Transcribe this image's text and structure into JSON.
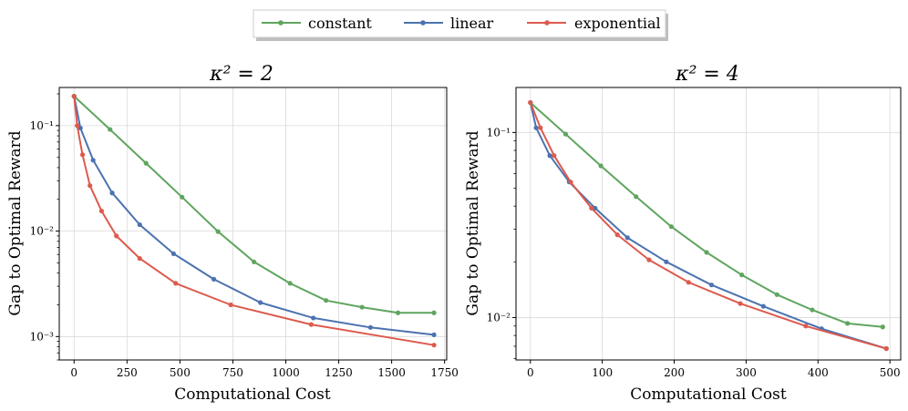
{
  "legend": {
    "entries": [
      {
        "name": "constant",
        "color": "#5fa55f"
      },
      {
        "name": "linear",
        "color": "#4c72b0"
      },
      {
        "name": "exponential",
        "color": "#dd5a4e"
      }
    ],
    "placement": "top-center"
  },
  "chart_data": [
    {
      "type": "line",
      "title": "κ² = 2",
      "xlabel": "Computational Cost",
      "ylabel": "Gap to Optimal Reward",
      "xscale": "linear",
      "yscale": "log",
      "xlim": [
        -70,
        1760
      ],
      "ylim": [
        0.0006,
        0.23
      ],
      "xticks": [
        0,
        250,
        500,
        750,
        1000,
        1250,
        1500,
        1750
      ],
      "xtick_labels": [
        "0",
        "250",
        "500",
        "750",
        "1000",
        "1250",
        "1500",
        "1750"
      ],
      "yticks": [
        0.001,
        0.01,
        0.1
      ],
      "ytick_labels": [
        "10⁻³",
        "10⁻²",
        "10⁻¹"
      ],
      "grid": true,
      "series": [
        {
          "name": "constant",
          "color": "#5fa55f",
          "x": [
            0,
            170,
            340,
            510,
            680,
            850,
            1020,
            1190,
            1360,
            1530,
            1700
          ],
          "y": [
            0.19,
            0.092,
            0.044,
            0.021,
            0.0099,
            0.0051,
            0.0032,
            0.0022,
            0.0019,
            0.00168,
            0.00168
          ]
        },
        {
          "name": "linear",
          "color": "#4c72b0",
          "x": [
            0,
            30,
            90,
            180,
            310,
            470,
            660,
            880,
            1130,
            1400,
            1700
          ],
          "y": [
            0.19,
            0.095,
            0.047,
            0.023,
            0.0115,
            0.0061,
            0.0035,
            0.0021,
            0.0015,
            0.00122,
            0.00104
          ]
        },
        {
          "name": "exponential",
          "color": "#dd5a4e",
          "x": [
            0,
            15,
            40,
            75,
            130,
            200,
            310,
            480,
            740,
            1120,
            1700
          ],
          "y": [
            0.19,
            0.1,
            0.053,
            0.027,
            0.0155,
            0.009,
            0.0055,
            0.0032,
            0.002,
            0.0013,
            0.00083
          ]
        }
      ]
    },
    {
      "type": "line",
      "title": "κ² = 4",
      "xlabel": "Computational Cost",
      "ylabel": "Gap to Optimal Reward",
      "xscale": "linear",
      "yscale": "log",
      "xlim": [
        -20,
        515
      ],
      "ylim": [
        0.0059,
        0.175
      ],
      "xticks": [
        0,
        100,
        200,
        300,
        400,
        500
      ],
      "xtick_labels": [
        "0",
        "100",
        "200",
        "300",
        "400",
        "500"
      ],
      "yticks": [
        0.01,
        0.1
      ],
      "ytick_labels": [
        "10⁻²",
        "10⁻¹"
      ],
      "grid": true,
      "series": [
        {
          "name": "constant",
          "color": "#5fa55f",
          "x": [
            0,
            49,
            98,
            147,
            196,
            245,
            294,
            343,
            392,
            441,
            490
          ],
          "y": [
            0.145,
            0.098,
            0.066,
            0.045,
            0.031,
            0.0225,
            0.017,
            0.0133,
            0.011,
            0.0093,
            0.0089
          ]
        },
        {
          "name": "linear",
          "color": "#4c72b0",
          "x": [
            0,
            8,
            27,
            54,
            90,
            135,
            189,
            252,
            324,
            405,
            495
          ],
          "y": [
            0.145,
            0.106,
            0.075,
            0.054,
            0.039,
            0.027,
            0.02,
            0.015,
            0.0115,
            0.0087,
            0.0068
          ]
        },
        {
          "name": "exponential",
          "color": "#dd5a4e",
          "x": [
            0,
            14,
            33,
            56,
            85,
            121,
            165,
            220,
            292,
            383,
            495
          ],
          "y": [
            0.145,
            0.106,
            0.075,
            0.054,
            0.039,
            0.028,
            0.0205,
            0.0155,
            0.0119,
            0.009,
            0.0068
          ]
        }
      ]
    }
  ]
}
